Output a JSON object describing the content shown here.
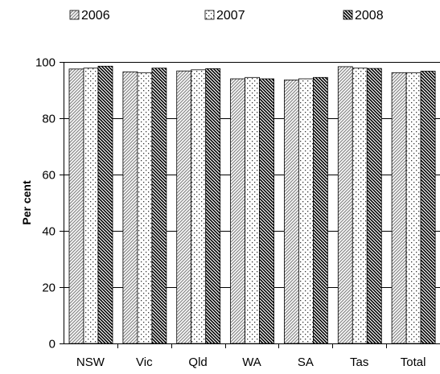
{
  "chart_data": {
    "type": "bar",
    "title": "",
    "xlabel": "",
    "ylabel": "Per cent",
    "ylim": [
      0,
      100
    ],
    "yticks": [
      0,
      20,
      40,
      60,
      80,
      100
    ],
    "grid": true,
    "legend_position": "top",
    "categories": [
      "NSW",
      "Vic",
      "Qld",
      "WA",
      "SA",
      "Tas",
      "Total"
    ],
    "series": [
      {
        "name": "2006",
        "pattern": "diagonal-light",
        "values": [
          97.5,
          96.5,
          96.8,
          94.0,
          93.6,
          98.3,
          96.2
        ]
      },
      {
        "name": "2007",
        "pattern": "dotted",
        "values": [
          97.8,
          96.2,
          97.2,
          94.5,
          94.0,
          97.8,
          96.2
        ]
      },
      {
        "name": "2008",
        "pattern": "diagonal-dense",
        "values": [
          98.5,
          97.8,
          97.6,
          94.0,
          94.5,
          97.7,
          96.7
        ]
      }
    ]
  }
}
